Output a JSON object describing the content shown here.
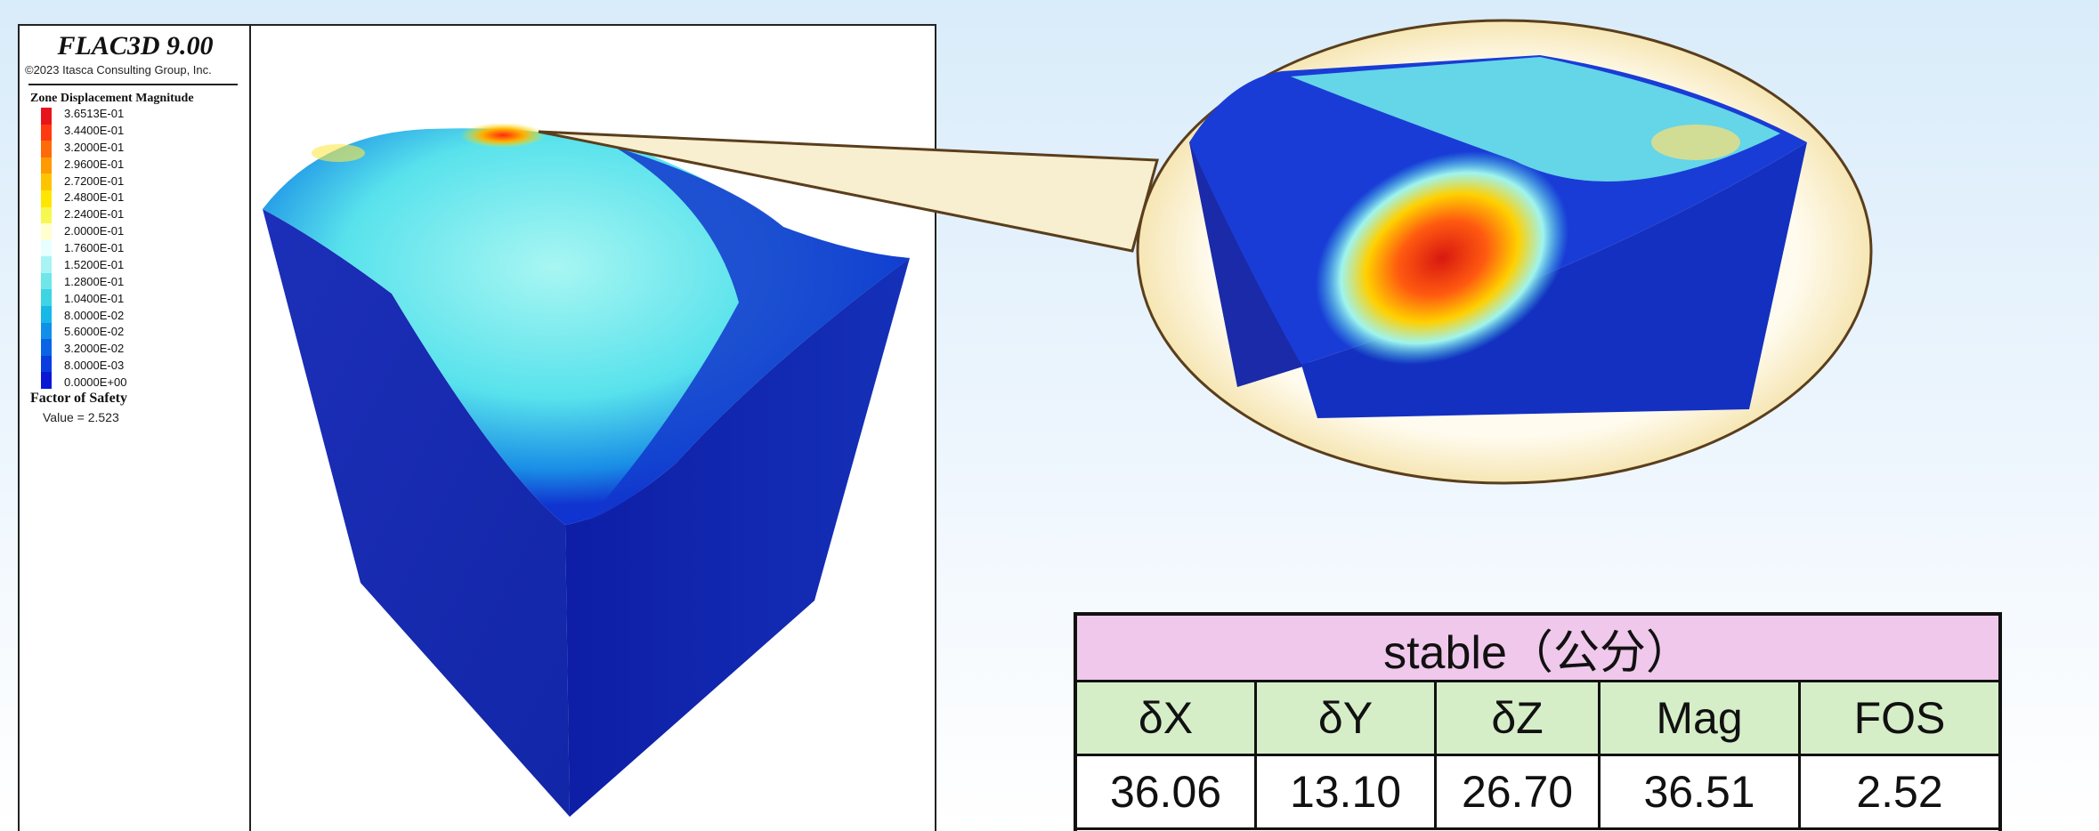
{
  "flac": {
    "app_title": "FLAC3D 9.00",
    "copyright": "©2023 Itasca Consulting Group, Inc.",
    "legend_title": "Zone Displacement Magnitude",
    "colorbar_labels": [
      "3.6513E-01",
      "3.4400E-01",
      "3.2000E-01",
      "2.9600E-01",
      "2.7200E-01",
      "2.4800E-01",
      "2.2400E-01",
      "2.0000E-01",
      "1.7600E-01",
      "1.5200E-01",
      "1.2800E-01",
      "1.0400E-01",
      "8.0000E-02",
      "5.6000E-02",
      "3.2000E-02",
      "8.0000E-03",
      "0.0000E+00"
    ],
    "colorbar_colors": [
      "#e8141c",
      "#ff3a10",
      "#ff6a08",
      "#ff9a00",
      "#ffc400",
      "#ffe600",
      "#f6f850",
      "#ffffd0",
      "#e8ffff",
      "#a8f4f4",
      "#6ee6ea",
      "#3ed4e6",
      "#16b8e8",
      "#1090e8",
      "#0a64e6",
      "#0a3ce0",
      "#0a18d4"
    ],
    "fos_title": "Factor of Safety",
    "fos_value": "Value = 2.523"
  },
  "table": {
    "header": "stable（公分）",
    "columns": [
      "δX",
      "δY",
      "δZ",
      "Mag",
      "FOS"
    ],
    "values": [
      "36.06",
      "13.10",
      "26.70",
      "36.51",
      "2.52"
    ]
  }
}
